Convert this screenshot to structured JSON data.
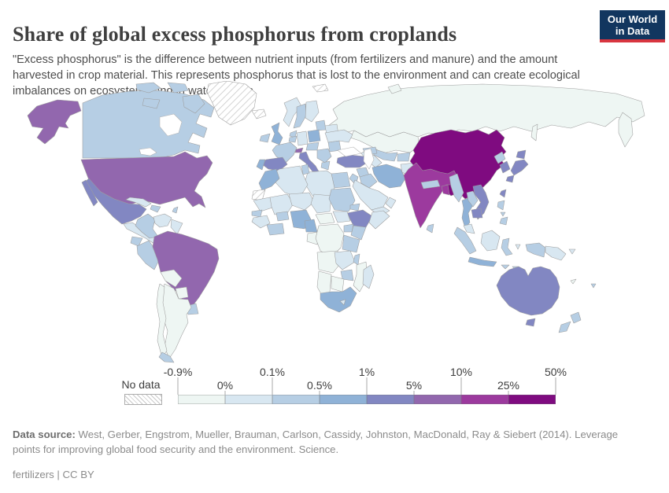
{
  "header": {
    "title": "Share of global excess phosphorus from croplands",
    "subtitle": "\"Excess phosphorus\" is the difference between nutrient inputs (from fertilizers and manure) and the amount harvested in crop material. This represents phosphorus that is lost to the environment and can create ecological imbalances on ecosystems and in water bodies.",
    "logo": {
      "line1": "Our World",
      "line2": "in Data"
    }
  },
  "colors": {
    "logo_bg": "#12365f",
    "logo_accent": "#d8353f",
    "map_border": "#9d9d9d",
    "text_dark": "#3f3f3f"
  },
  "chart_data": {
    "type": "heatmap",
    "subtype": "choropleth-world-map",
    "title": "Share of global excess phosphorus from croplands",
    "unit": "%",
    "legend_position": "bottom",
    "no_data_label": "No data",
    "boundary_labels": [
      "-0.9%",
      "0%",
      "0.1%",
      "0.5%",
      "1%",
      "5%",
      "10%",
      "25%",
      "50%"
    ],
    "bins": [
      {
        "range": "-0.9-0%",
        "color": "#eef6f3"
      },
      {
        "range": "0-0.1%",
        "color": "#d8e7f1"
      },
      {
        "range": "0.1-0.5%",
        "color": "#b6cee4"
      },
      {
        "range": "0.5-1%",
        "color": "#8fb2d7"
      },
      {
        "range": "1-5%",
        "color": "#8287c2"
      },
      {
        "range": "5-10%",
        "color": "#9267ae"
      },
      {
        "range": "10-25%",
        "color": "#9c3a9e"
      },
      {
        "range": "25-50%",
        "color": "#7f0b80"
      }
    ],
    "countries": {
      "greenland": "No data",
      "iceland": "No data",
      "svalbard": "No data",
      "western-sahara": "No data",
      "canada": "0.1-0.5%",
      "alaska": "5-10%",
      "united-states": "5-10%",
      "mexico": "1-5%",
      "baja-california": "1-5%",
      "central-america": "0-0.1%",
      "cuba": "0-0.1%",
      "hispaniola": "0.1-0.5%",
      "antilles": "0.1-0.5%",
      "colombia": "0.1-0.5%",
      "venezuela": "0-0.1%",
      "guyanas": "0-0.1%",
      "ecuador": "0.1-0.5%",
      "peru": "0.1-0.5%",
      "brazil": "5-10%",
      "bolivia": "-0.9-0%",
      "paraguay": "-0.9-0%",
      "uruguay": "0.1-0.5%",
      "argentina": "-0.9-0%",
      "chile": "-0.9-0%",
      "chile-south": "0.1-0.5%",
      "ireland": "0.1-0.5%",
      "united-kingdom": "0.5-1%",
      "norway": "0-0.1%",
      "sweden": "0.1-0.5%",
      "finland": "0-0.1%",
      "denmark": "0.1-0.5%",
      "baltic-states": "0.1-0.5%",
      "belarus": "0-0.1%",
      "poland": "0.5-1%",
      "germany": "0-0.1%",
      "benelux": "0.1-0.5%",
      "france": "0.1-0.5%",
      "switzerland": "5-10%",
      "spain": "1-5%",
      "portugal": "0.5-1%",
      "italy": "1-5%",
      "sicily": "1-5%",
      "czechia-austria": "0.1-0.5%",
      "balkans": "0.1-0.5%",
      "greece": "0.1-0.5%",
      "romania": "0.1-0.5%",
      "ukraine": "0-0.1%",
      "russia": "-0.9-0%",
      "kamchatka": "-0.9-0%",
      "sakhalin": "-0.9-0%",
      "novaya-zemlya": "-0.9-0%",
      "kazakhstan": "-0.9-0%",
      "mongolia": "-0.9-0%",
      "uzbekistan": "0.1-0.5%",
      "turkmenistan": "0-0.1%",
      "kyrgyzstan-tajikistan": "0.1-0.5%",
      "caucasus": "0.1-0.5%",
      "turkey": "1-5%",
      "syria": "0.1-0.5%",
      "jordan-israel": "0.1-0.5%",
      "iraq": "0.1-0.5%",
      "iran": "0.5-1%",
      "afghanistan": "0-0.1%",
      "pakistan": "1-5%",
      "saudi-arabia": "0-0.1%",
      "yemen": "0-0.1%",
      "oman": "0-0.1%",
      "egypt": "0.1-0.5%",
      "libya": "0-0.1%",
      "tunisia": "0.1-0.5%",
      "algeria": "0-0.1%",
      "morocco": "0.5-1%",
      "mauritania": "0-0.1%",
      "mali": "0-0.1%",
      "senegal": "0.1-0.5%",
      "guinea": "0-0.1%",
      "ivory-coast-ghana": "0.1-0.5%",
      "burkina-faso": "0.1-0.5%",
      "niger": "0-0.1%",
      "nigeria": "0.5-1%",
      "chad": "0-0.1%",
      "sudan": "0.1-0.5%",
      "eritrea": "0.1-0.5%",
      "ethiopia": "1-5%",
      "somalia": "0-0.1%",
      "south-sudan": "0-0.1%",
      "central-african-republic": "-0.9-0%",
      "cameroon": "0.5-1%",
      "gabon-congo": "-0.9-0%",
      "dr-congo": "-0.9-0%",
      "uganda": "0.1-0.5%",
      "kenya": "0.1-0.5%",
      "tanzania": "0.1-0.5%",
      "angola": "-0.9-0%",
      "zambia": "0-0.1%",
      "malawi": "0.1-0.5%",
      "mozambique": "-0.9-0%",
      "zimbabwe": "0.1-0.5%",
      "botswana": "-0.9-0%",
      "namibia": "-0.9-0%",
      "south-africa": "0.5-1%",
      "lesotho": "0-0.1%",
      "madagascar": "0-0.1%",
      "china": "25-50%",
      "hainan": "25-50%",
      "taiwan": "1-5%",
      "north-korea": "0.1-0.5%",
      "south-korea": "1-5%",
      "japan-hokkaido": "1-5%",
      "japan-honshu": "1-5%",
      "japan-kyushu": "1-5%",
      "nepal": "0.1-0.5%",
      "india": "10-25%",
      "sri-lanka": "0.1-0.5%",
      "bangladesh": "10-25%",
      "myanmar": "0.1-0.5%",
      "thailand": "0.5-1%",
      "laos": "0.1-0.5%",
      "vietnam": "1-5%",
      "cambodia": "1-5%",
      "malaysia": "0-0.1%",
      "sumatra": "0.1-0.5%",
      "java": "0.5-1%",
      "borneo": "0-0.1%",
      "sulawesi": "0.1-0.5%",
      "moluccas": "0-0.1%",
      "lesser-sunda-1": "0.1-0.5%",
      "lesser-sunda-2": "0.1-0.5%",
      "philippines-luzon": "0.1-0.5%",
      "philippines-visayas": "0.1-0.5%",
      "philippines-mindanao": "0.1-0.5%",
      "west-papua": "0.1-0.5%",
      "papua-new-guinea": "0-0.1%",
      "new-britain": "0-0.1%",
      "australia": "1-5%",
      "tasmania": "1-5%",
      "new-zealand-north": "0.1-0.5%",
      "new-zealand-south": "0.1-0.5%",
      "new-caledonia": "-0.9-0%",
      "fiji": "0.1-0.5%"
    }
  },
  "footer": {
    "data_source_label": "Data source:",
    "data_source_text": " West, Gerber, Engstrom, Mueller, Brauman, Carlson, Cassidy, Johnston, MacDonald, Ray & Siebert (2014). Leverage points for improving global food security and the environment. Science.",
    "license_text": "fertilizers | CC BY"
  }
}
